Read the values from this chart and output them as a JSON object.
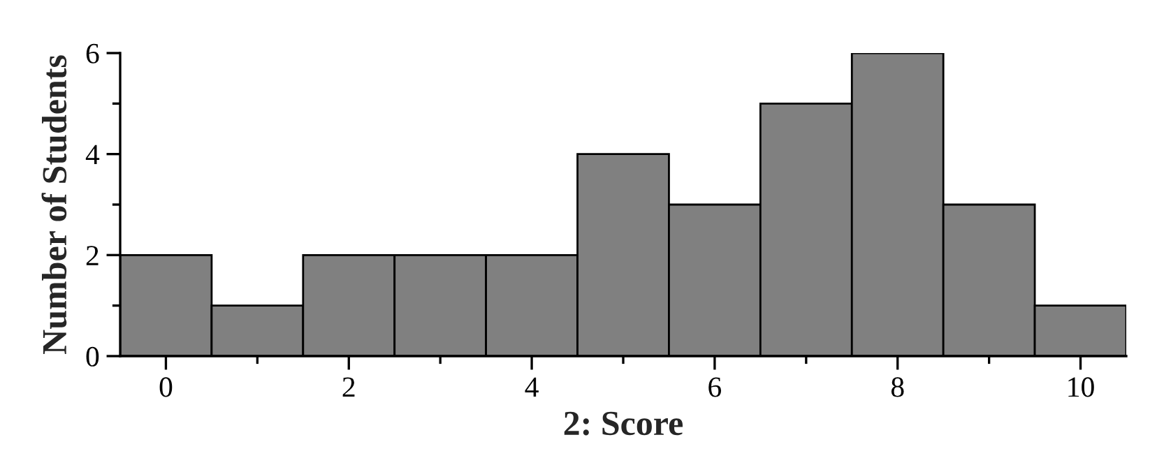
{
  "chart_data": {
    "type": "histogram",
    "xlabel": "2: Score",
    "ylabel": "Number of Students",
    "bins": [
      -0.5,
      0.5,
      1.5,
      2.5,
      3.5,
      4.5,
      5.5,
      6.5,
      7.5,
      8.5,
      9.5,
      10.5
    ],
    "values": [
      2,
      1,
      2,
      2,
      2,
      4,
      3,
      5,
      6,
      3,
      1
    ],
    "color": "#808080",
    "xlim": [
      -0.5,
      10.5
    ],
    "ylim": [
      0,
      6
    ],
    "xticks": [
      0,
      {
        "value": 1,
        "label": null
      },
      2,
      {
        "value": 3,
        "label": null
      },
      4,
      {
        "value": 5,
        "label": null
      },
      6,
      {
        "value": 7,
        "label": null
      },
      8,
      {
        "value": 9,
        "label": null
      },
      10
    ],
    "yticks": [
      0,
      {
        "value": 1,
        "label": null
      },
      2,
      {
        "value": 3,
        "label": null
      },
      4,
      {
        "value": 5,
        "label": null
      },
      6
    ],
    "grid": false
  }
}
